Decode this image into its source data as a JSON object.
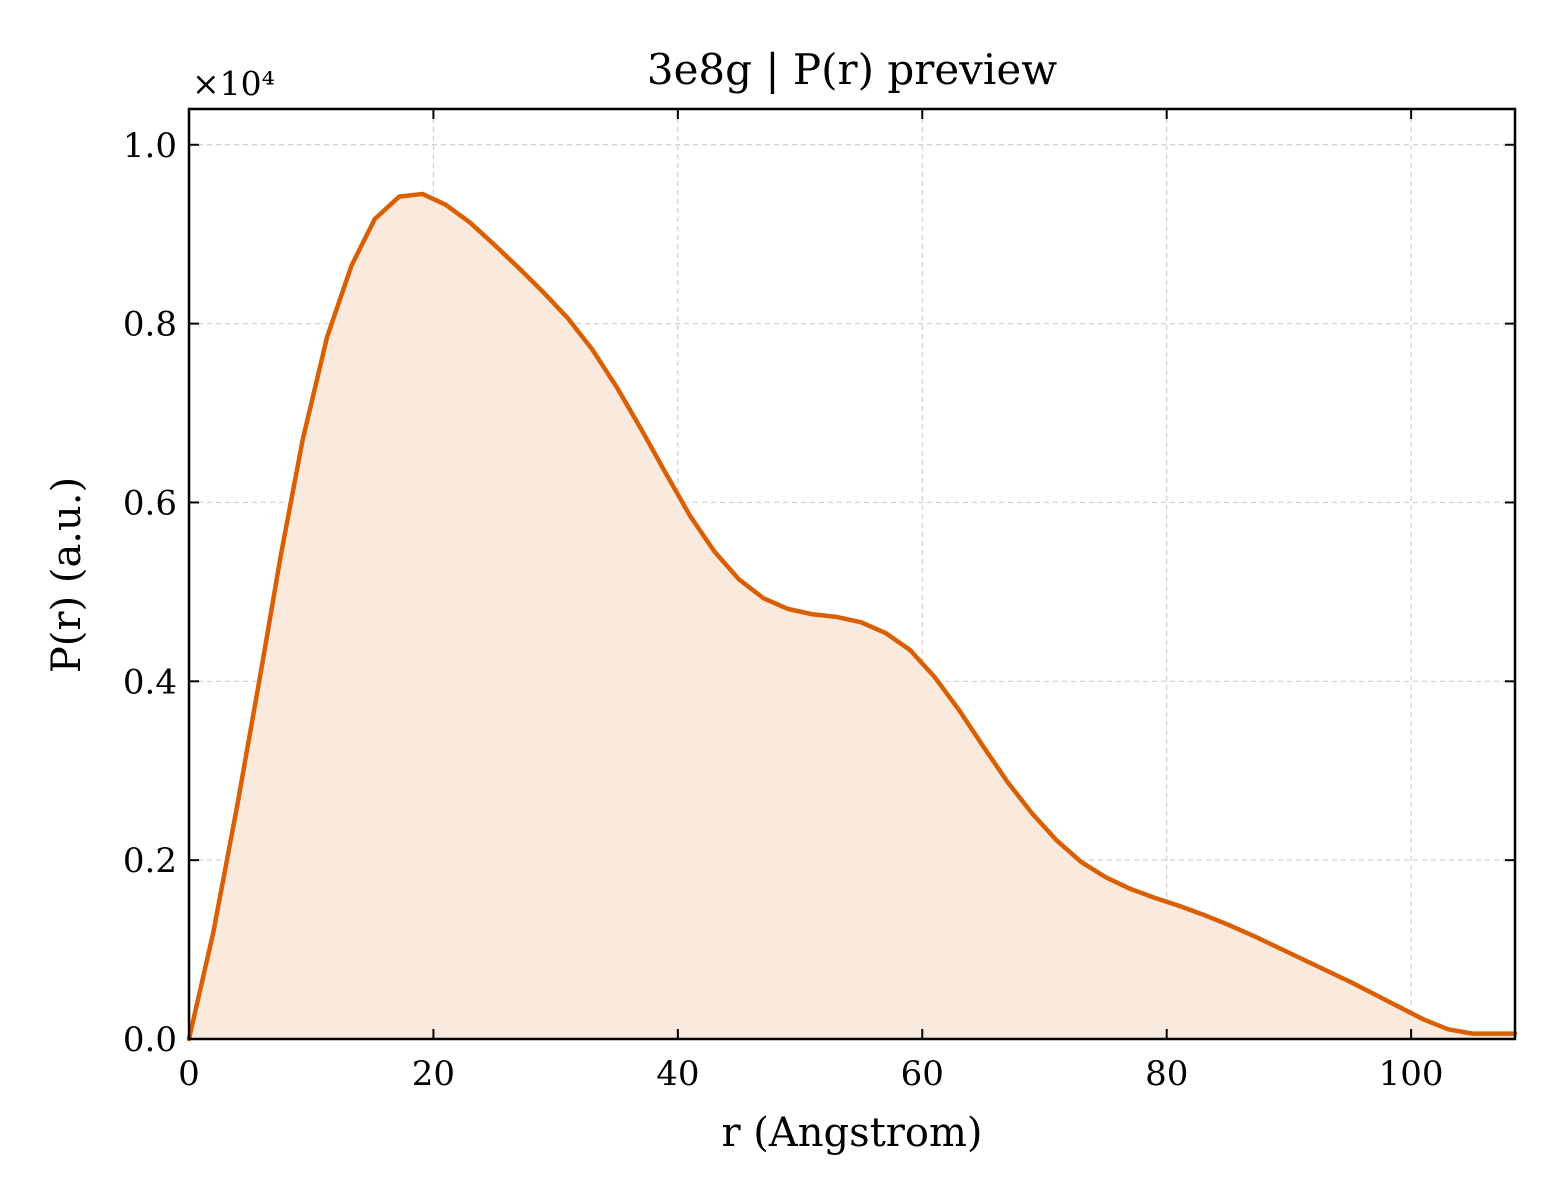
{
  "chart_data": {
    "type": "area",
    "title": "3e8g | P(r) preview",
    "xlabel": "r (Angstrom)",
    "ylabel": "P(r) (a.u.)",
    "y_multiplier": "×10⁴",
    "xlim": [
      0,
      108.5
    ],
    "ylim": [
      0,
      1.04
    ],
    "xticks": [
      0,
      20,
      40,
      60,
      80,
      100
    ],
    "yticks": [
      0.0,
      0.2,
      0.4,
      0.6,
      0.8,
      1.0
    ],
    "xtick_labels": [
      "0",
      "20",
      "40",
      "60",
      "80",
      "100"
    ],
    "ytick_labels": [
      "0.0",
      "0.2",
      "0.4",
      "0.6",
      "0.8",
      "1.0"
    ],
    "grid": true,
    "colors": {
      "line": "#d95f02",
      "fill": "#fae9dd"
    },
    "series": [
      {
        "x": [
          0,
          2,
          4,
          6,
          7.5,
          9.3,
          11.3,
          13.3,
          15.2,
          17.2,
          19.1,
          21.0,
          23.0,
          25.0,
          27.0,
          29.0,
          31.0,
          33.0,
          35.0,
          37.0,
          39.0,
          41.0,
          43.0,
          45.0,
          47.0,
          49.0,
          51.0,
          53.0,
          55.0,
          57.0,
          59.0,
          61.0,
          63.0,
          65.0,
          67.0,
          69.0,
          71.0,
          73.0,
          75.0,
          77.0,
          79.0,
          81.0,
          83.0,
          85.0,
          87.0,
          89.0,
          91.0,
          93.0,
          95.0,
          97.0,
          99.0,
          101.0,
          103.0,
          105.0,
          106.8,
          108.5
        ],
        "y": [
          0.0,
          0.12,
          0.265,
          0.42,
          0.54,
          0.67,
          0.785,
          0.865,
          0.917,
          0.942,
          0.945,
          0.933,
          0.913,
          0.888,
          0.862,
          0.835,
          0.806,
          0.771,
          0.729,
          0.682,
          0.633,
          0.585,
          0.545,
          0.514,
          0.493,
          0.481,
          0.475,
          0.472,
          0.466,
          0.454,
          0.435,
          0.405,
          0.368,
          0.327,
          0.287,
          0.252,
          0.222,
          0.198,
          0.181,
          0.168,
          0.158,
          0.149,
          0.139,
          0.128,
          0.116,
          0.103,
          0.09,
          0.077,
          0.064,
          0.05,
          0.036,
          0.022,
          0.011,
          0.006,
          0.006,
          0.006
        ]
      }
    ]
  }
}
